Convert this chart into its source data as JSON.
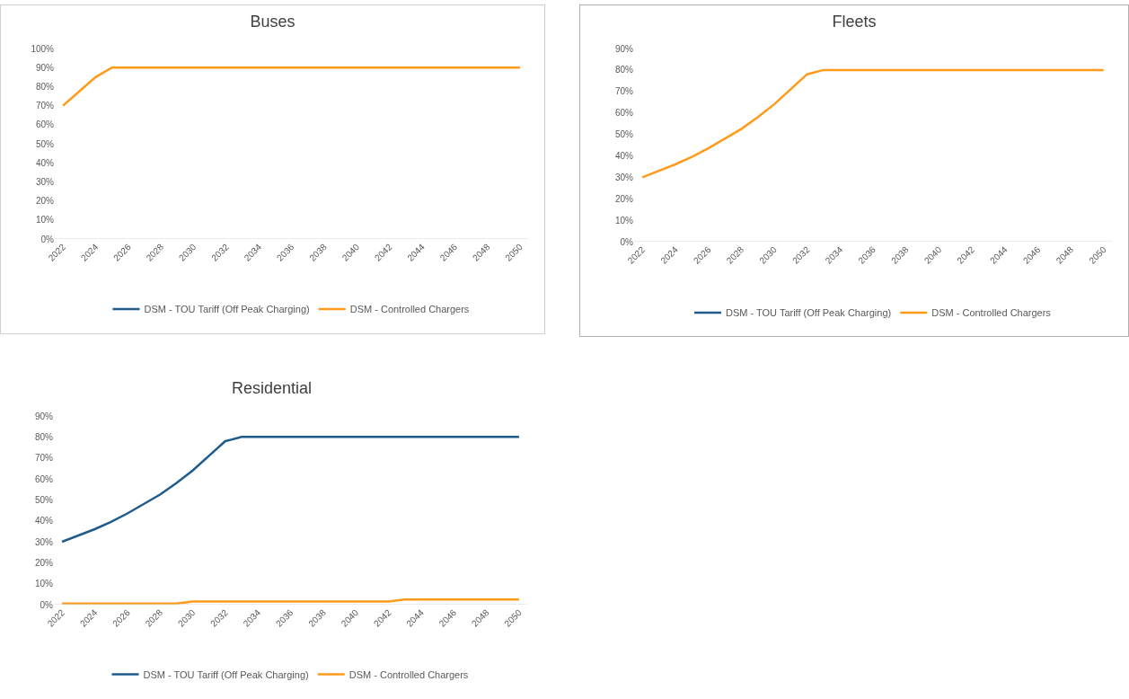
{
  "chart_data": [
    {
      "type": "line",
      "title": "Buses",
      "x": [
        2022,
        2023,
        2024,
        2025,
        2026,
        2027,
        2028,
        2029,
        2030,
        2031,
        2032,
        2033,
        2034,
        2035,
        2036,
        2037,
        2038,
        2039,
        2040,
        2041,
        2042,
        2043,
        2044,
        2045,
        2046,
        2047,
        2048,
        2049,
        2050
      ],
      "series": [
        {
          "name": "DSM - TOU Tariff (Off Peak Charging)",
          "color": "#1f5c8b",
          "values": [
            null,
            null,
            null,
            null,
            null,
            null,
            null,
            null,
            null,
            null,
            null,
            null,
            null,
            null,
            null,
            null,
            null,
            null,
            null,
            null,
            null,
            null,
            null,
            null,
            null,
            null,
            null,
            null,
            null
          ]
        },
        {
          "name": "DSM - Controlled Chargers",
          "color": "#ff9a1a",
          "values": [
            70,
            77.5,
            85,
            90,
            90,
            90,
            90,
            90,
            90,
            90,
            90,
            90,
            90,
            90,
            90,
            90,
            90,
            90,
            90,
            90,
            90,
            90,
            90,
            90,
            90,
            90,
            90,
            90,
            90
          ]
        }
      ],
      "xlim": [
        2021.5,
        2050.5
      ],
      "xticks": [
        2022,
        2024,
        2026,
        2028,
        2030,
        2032,
        2034,
        2036,
        2038,
        2040,
        2042,
        2044,
        2046,
        2048,
        2050
      ],
      "ylim": [
        0,
        100
      ],
      "yticks": [
        {
          "value": 0,
          "label": "0%"
        },
        {
          "value": 10,
          "label": "10%"
        },
        {
          "value": 20,
          "label": "20%"
        },
        {
          "value": 30,
          "label": "30%"
        },
        {
          "value": 40,
          "label": "40%"
        },
        {
          "value": 50,
          "label": "50%"
        },
        {
          "value": 60,
          "label": "60%"
        },
        {
          "value": 70,
          "label": "70%"
        },
        {
          "value": 80,
          "label": "80%"
        },
        {
          "value": 90,
          "label": "90%"
        },
        {
          "value": 100,
          "label": "100%"
        }
      ],
      "grid": false,
      "legend": "bottom",
      "marker": "none",
      "line_style": "solid"
    },
    {
      "type": "line",
      "title": "Fleets",
      "x": [
        2022,
        2023,
        2024,
        2025,
        2026,
        2027,
        2028,
        2029,
        2030,
        2031,
        2032,
        2033,
        2034,
        2035,
        2036,
        2037,
        2038,
        2039,
        2040,
        2041,
        2042,
        2043,
        2044,
        2045,
        2046,
        2047,
        2048,
        2049,
        2050
      ],
      "series": [
        {
          "name": "DSM - TOU Tariff (Off Peak Charging)",
          "color": "#1f5c8b",
          "values": [
            null,
            null,
            null,
            null,
            null,
            null,
            null,
            null,
            null,
            null,
            null,
            null,
            null,
            null,
            null,
            null,
            null,
            null,
            null,
            null,
            null,
            null,
            null,
            null,
            null,
            null,
            null,
            null,
            null
          ]
        },
        {
          "name": "DSM - Controlled Chargers",
          "color": "#ff9a1a",
          "values": [
            30,
            33,
            36,
            39.5,
            43.5,
            48,
            52.5,
            58,
            64,
            71,
            78,
            80,
            80,
            80,
            80,
            80,
            80,
            80,
            80,
            80,
            80,
            80,
            80,
            80,
            80,
            80,
            80,
            80,
            80
          ]
        }
      ],
      "xlim": [
        2021.5,
        2050.5
      ],
      "xticks": [
        2022,
        2024,
        2026,
        2028,
        2030,
        2032,
        2034,
        2036,
        2038,
        2040,
        2042,
        2044,
        2046,
        2048,
        2050
      ],
      "ylim": [
        0,
        90
      ],
      "yticks": [
        {
          "value": 0,
          "label": "0%"
        },
        {
          "value": 10,
          "label": "10%"
        },
        {
          "value": 20,
          "label": "20%"
        },
        {
          "value": 30,
          "label": "30%"
        },
        {
          "value": 40,
          "label": "40%"
        },
        {
          "value": 50,
          "label": "50%"
        },
        {
          "value": 60,
          "label": "60%"
        },
        {
          "value": 70,
          "label": "70%"
        },
        {
          "value": 80,
          "label": "80%"
        },
        {
          "value": 90,
          "label": "90%"
        }
      ],
      "grid": false,
      "legend": "bottom",
      "marker": "none",
      "line_style": "solid"
    },
    {
      "type": "line",
      "title": "Residential",
      "x": [
        2022,
        2023,
        2024,
        2025,
        2026,
        2027,
        2028,
        2029,
        2030,
        2031,
        2032,
        2033,
        2034,
        2035,
        2036,
        2037,
        2038,
        2039,
        2040,
        2041,
        2042,
        2043,
        2044,
        2045,
        2046,
        2047,
        2048,
        2049,
        2050
      ],
      "series": [
        {
          "name": "DSM - TOU Tariff (Off Peak Charging)",
          "color": "#1f5c8b",
          "values": [
            30,
            33,
            36,
            39.5,
            43.5,
            48,
            52.5,
            58,
            64,
            71,
            78,
            80,
            80,
            80,
            80,
            80,
            80,
            80,
            80,
            80,
            80,
            80,
            80,
            80,
            80,
            80,
            80,
            80,
            80
          ]
        },
        {
          "name": "DSM - Controlled Chargers",
          "color": "#ff9a1a",
          "values": [
            0.5,
            0.5,
            0.5,
            0.5,
            0.5,
            0.5,
            0.5,
            0.5,
            1.5,
            1.5,
            1.5,
            1.5,
            1.5,
            1.5,
            1.5,
            1.5,
            1.5,
            1.5,
            1.5,
            1.5,
            1.5,
            2.5,
            2.5,
            2.5,
            2.5,
            2.5,
            2.5,
            2.5,
            2.5
          ]
        }
      ],
      "xlim": [
        2021.5,
        2050.5
      ],
      "xticks": [
        2022,
        2024,
        2026,
        2028,
        2030,
        2032,
        2034,
        2036,
        2038,
        2040,
        2042,
        2044,
        2046,
        2048,
        2050
      ],
      "ylim": [
        0,
        90
      ],
      "yticks": [
        {
          "value": 0,
          "label": "0%"
        },
        {
          "value": 10,
          "label": "10%"
        },
        {
          "value": 20,
          "label": "20%"
        },
        {
          "value": 30,
          "label": "30%"
        },
        {
          "value": 40,
          "label": "40%"
        },
        {
          "value": 50,
          "label": "50%"
        },
        {
          "value": 60,
          "label": "60%"
        },
        {
          "value": 70,
          "label": "70%"
        },
        {
          "value": 80,
          "label": "80%"
        },
        {
          "value": 90,
          "label": "90%"
        }
      ],
      "grid": false,
      "legend": "bottom",
      "marker": "none",
      "line_style": "solid"
    }
  ]
}
